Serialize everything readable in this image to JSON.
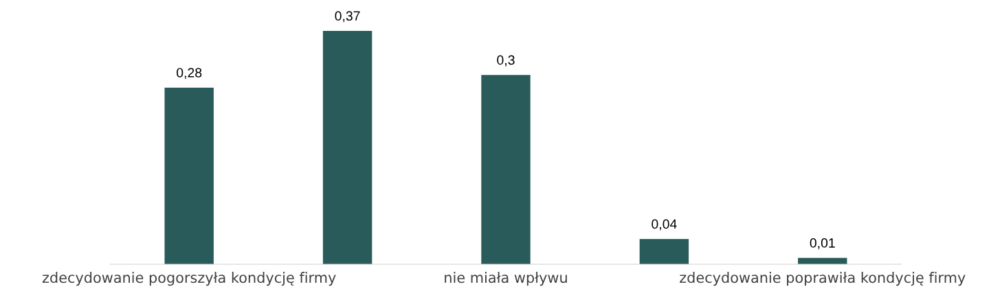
{
  "chart_data": {
    "type": "bar",
    "categories": [
      "zdecydowanie pogorszyła kondycję firmy",
      null,
      "nie miała wpływu",
      null,
      "zdecydowanie poprawiła kondycję firmy"
    ],
    "values": [
      0.28,
      0.37,
      0.3,
      0.04,
      0.01
    ],
    "value_labels": [
      "0,28",
      "0,37",
      "0,3",
      "0,04",
      "0,01"
    ],
    "color": "#2a5b5b",
    "grid": false,
    "legend": false
  }
}
